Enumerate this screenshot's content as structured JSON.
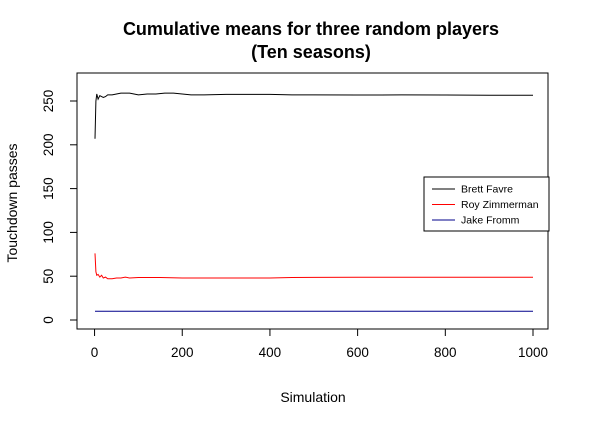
{
  "chart_data": {
    "type": "line",
    "title_line1": "Cumulative means for three random players",
    "title_line2": "(Ten seasons)",
    "xlabel": "Simulation",
    "ylabel": "Touchdown passes",
    "xlim": [
      1,
      1000
    ],
    "ylim": [
      0,
      258
    ],
    "x_ticks": [
      0,
      200,
      400,
      600,
      800,
      1000
    ],
    "y_ticks": [
      0,
      50,
      100,
      150,
      200,
      250
    ],
    "grid": false,
    "legend_position": "right",
    "series": [
      {
        "name": "Brett Favre",
        "color": "#000000",
        "x": [
          1,
          3,
          5,
          8,
          12,
          16,
          20,
          25,
          30,
          40,
          50,
          60,
          70,
          80,
          90,
          100,
          120,
          140,
          160,
          180,
          200,
          220,
          250,
          300,
          350,
          400,
          450,
          500,
          600,
          700,
          800,
          900,
          1000
        ],
        "y": [
          207,
          250,
          258,
          252,
          256,
          255,
          254,
          255,
          257,
          257,
          258,
          259,
          259,
          259,
          258,
          257,
          258,
          258,
          259,
          259,
          258,
          257,
          257,
          257.5,
          257.5,
          257.5,
          257,
          257,
          256.8,
          257,
          256.8,
          256.5,
          256.5
        ]
      },
      {
        "name": "Roy Zimmerman",
        "color": "#ff0000",
        "x": [
          1,
          3,
          5,
          8,
          12,
          16,
          20,
          25,
          30,
          40,
          50,
          60,
          70,
          80,
          100,
          120,
          150,
          200,
          250,
          300,
          350,
          400,
          450,
          500,
          600,
          700,
          800,
          900,
          1000
        ],
        "y": [
          76,
          55,
          51,
          52,
          49,
          51,
          48,
          49,
          47,
          47,
          48,
          48,
          49,
          48,
          48.5,
          48.5,
          48.5,
          48,
          48,
          48,
          48,
          48,
          48.5,
          48.6,
          48.7,
          48.7,
          48.7,
          48.7,
          48.8
        ]
      },
      {
        "name": "Jake Fromm",
        "color": "#00008b",
        "x": [
          1,
          1000
        ],
        "y": [
          10,
          10
        ]
      }
    ]
  }
}
